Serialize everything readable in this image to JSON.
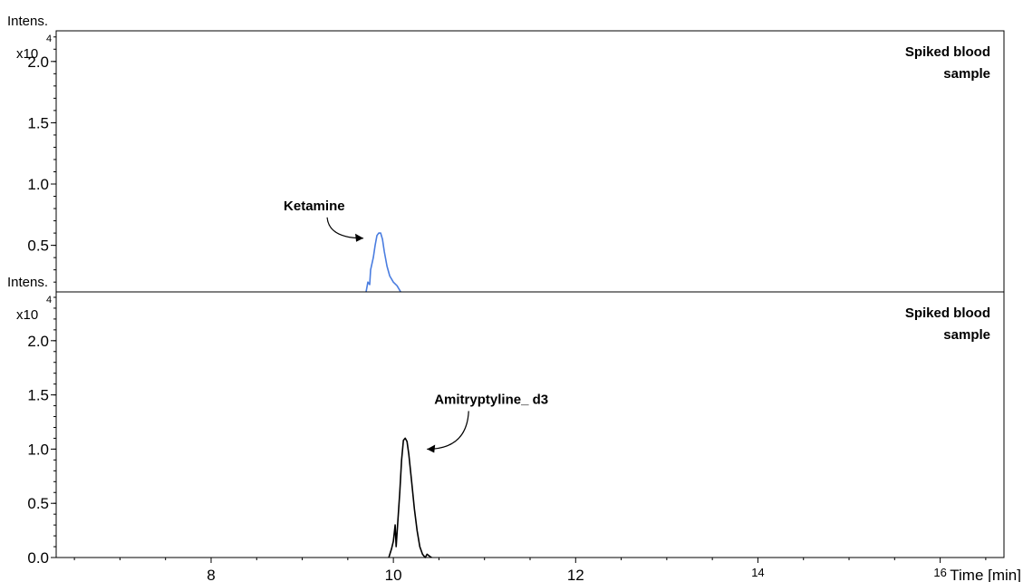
{
  "chart_data": [
    {
      "type": "line",
      "panel": "top",
      "ylabel": "Intens.",
      "y_multiplier": "x10",
      "y_exponent": "4",
      "xlim": [
        6.3,
        16.7
      ],
      "ylim": [
        0.12,
        2.25
      ],
      "yticks": [
        0.5,
        1.0,
        1.5,
        2.0
      ],
      "ytick_labels": [
        "0.5",
        "1.0",
        "1.5",
        "2.0"
      ],
      "sample_label_line1": "Spiked blood",
      "sample_label_line2": "sample",
      "line_color": "#4a7de0",
      "annotation": {
        "text": "Ketamine",
        "x": 9.85,
        "y": 0.58
      },
      "series": [
        {
          "x": [
            9.7,
            9.72,
            9.74,
            9.75,
            9.78,
            9.8,
            9.82,
            9.84,
            9.86,
            9.88,
            9.9,
            9.93,
            9.96,
            10.0,
            10.04,
            10.08
          ],
          "y": [
            0.12,
            0.2,
            0.18,
            0.3,
            0.4,
            0.5,
            0.58,
            0.6,
            0.6,
            0.55,
            0.45,
            0.33,
            0.25,
            0.2,
            0.17,
            0.12
          ]
        }
      ]
    },
    {
      "type": "line",
      "panel": "bottom",
      "ylabel": "Intens.",
      "y_multiplier": "x10",
      "y_exponent": "4",
      "xlabel": "Time [min]",
      "xlim": [
        6.3,
        16.7
      ],
      "ylim": [
        0.0,
        2.45
      ],
      "yticks": [
        0.0,
        0.5,
        1.0,
        1.5,
        2.0
      ],
      "ytick_labels": [
        "0.0",
        "0.5",
        "1.0",
        "1.5",
        "2.0"
      ],
      "xticks": [
        8,
        10,
        12,
        14,
        16
      ],
      "xtick_labels": [
        "8",
        "10",
        "12",
        "14",
        "16"
      ],
      "sample_label_line1": "Spiked blood",
      "sample_label_line2": "sample",
      "line_color": "#000000",
      "annotation": {
        "text": "Amitryptyline_ d3",
        "x": 10.15,
        "y": 1.1
      },
      "series": [
        {
          "x": [
            9.95,
            9.98,
            10.0,
            10.02,
            10.03,
            10.05,
            10.07,
            10.09,
            10.11,
            10.13,
            10.15,
            10.17,
            10.2,
            10.23,
            10.26,
            10.29,
            10.32,
            10.35,
            10.37,
            10.4,
            10.42
          ],
          "y": [
            0.0,
            0.08,
            0.15,
            0.3,
            0.1,
            0.35,
            0.6,
            0.9,
            1.08,
            1.1,
            1.07,
            0.95,
            0.7,
            0.45,
            0.25,
            0.1,
            0.03,
            0.0,
            0.03,
            0.01,
            0.0
          ]
        }
      ]
    }
  ]
}
